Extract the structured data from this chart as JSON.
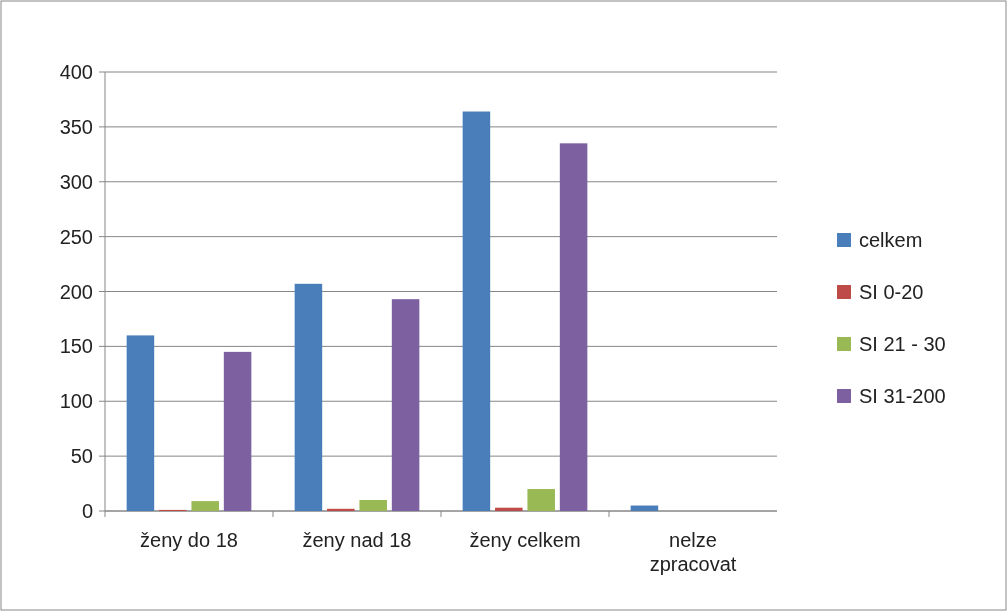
{
  "chart_data": {
    "type": "bar",
    "categories": [
      "ženy do 18",
      "ženy nad 18",
      "ženy celkem",
      "nelze zpracovat"
    ],
    "series": [
      {
        "name": "celkem",
        "color": "#4a7ebb",
        "values": [
          160,
          207,
          364,
          5
        ]
      },
      {
        "name": "SI 0-20",
        "color": "#be4b48",
        "values": [
          1,
          2,
          3,
          0
        ]
      },
      {
        "name": "SI 21 - 30",
        "color": "#98b954",
        "values": [
          9,
          10,
          20,
          0
        ]
      },
      {
        "name": "SI 31-200",
        "color": "#7d60a0",
        "values": [
          145,
          193,
          335,
          0
        ]
      }
    ],
    "ylim": [
      0,
      400
    ],
    "yticks": [
      0,
      50,
      100,
      150,
      200,
      250,
      300,
      350,
      400
    ],
    "grid": "y",
    "legend": "right"
  }
}
